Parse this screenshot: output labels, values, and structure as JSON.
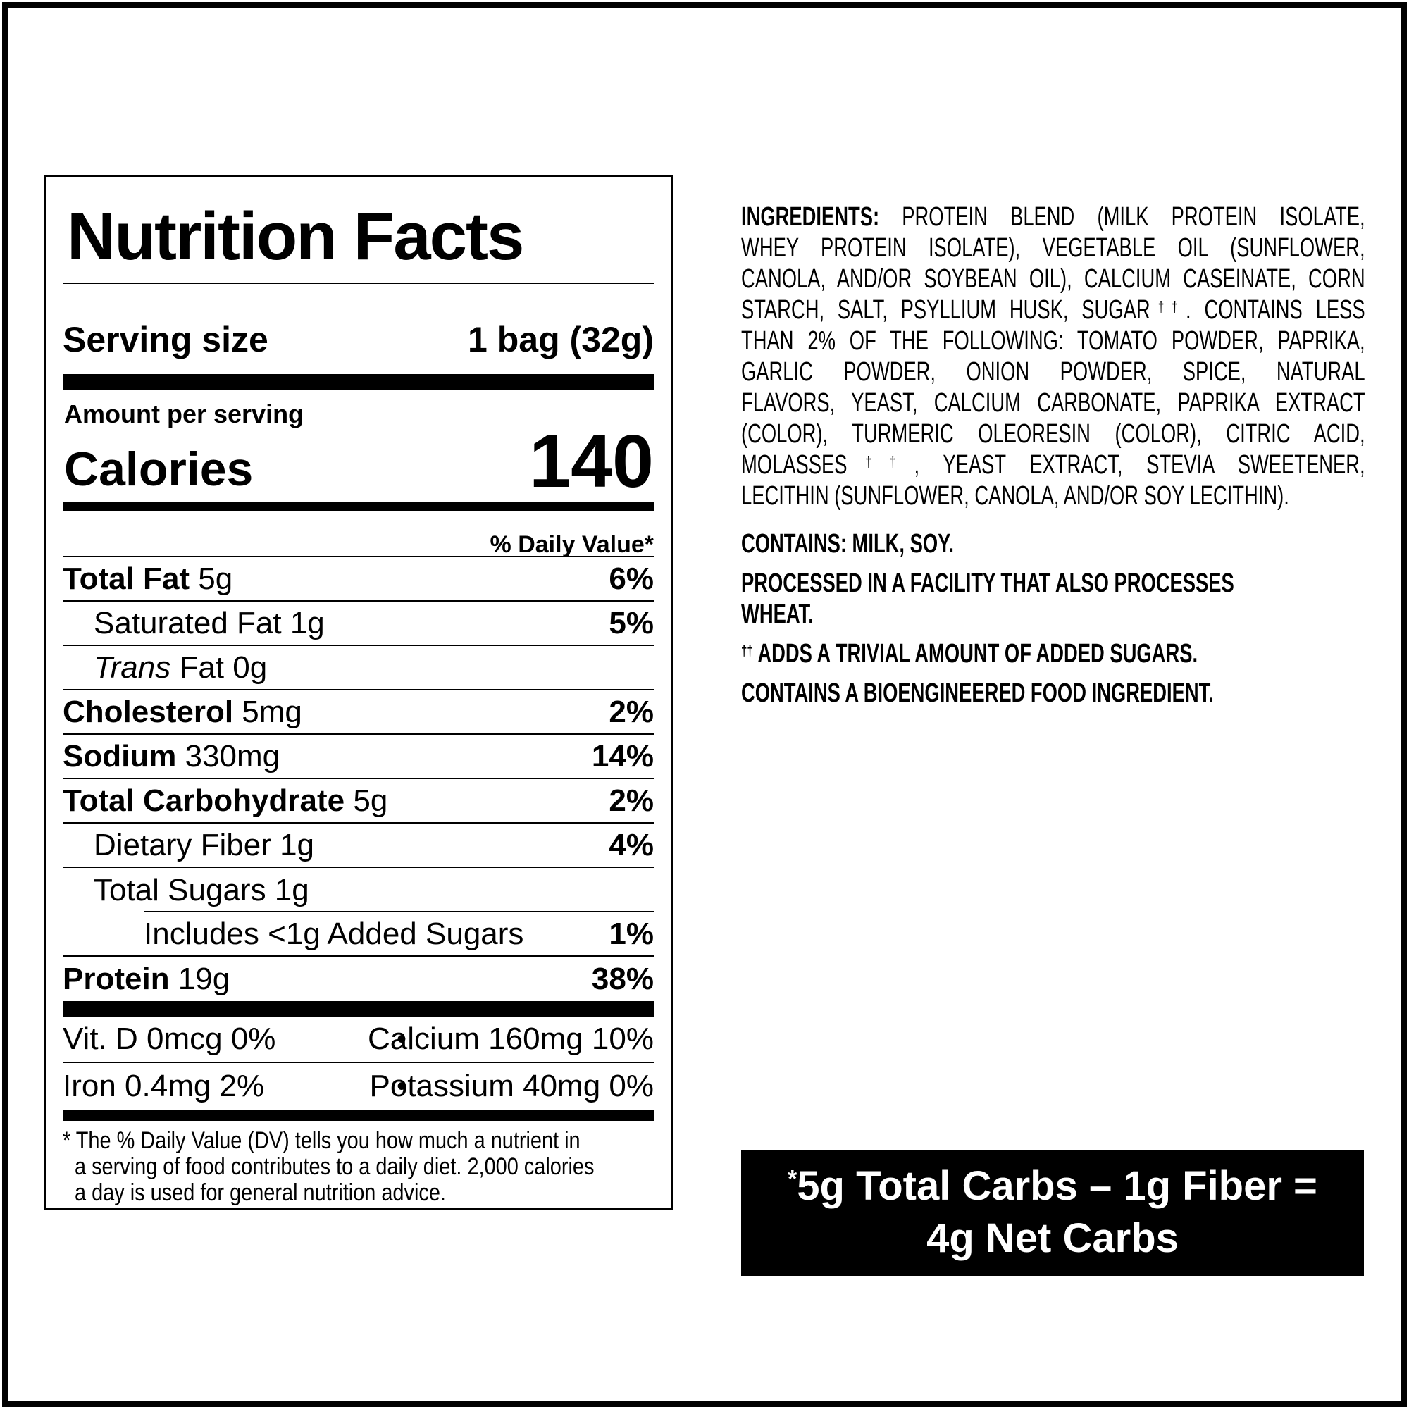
{
  "page": {
    "background": "#ffffff",
    "border_color": "#000000",
    "text_color": "#000000"
  },
  "nutrition_label": {
    "title": "Nutrition Facts",
    "serving_size_label": "Serving size",
    "serving_size_value": "1 bag (32g)",
    "amount_per_serving": "Amount per serving",
    "calories_label": "Calories",
    "calories_value": "140",
    "daily_value_header": "% Daily Value*",
    "rows": [
      {
        "name": "Total Fat",
        "amount": "5g",
        "dv": "6%",
        "bold": true,
        "indent": 0
      },
      {
        "name": "Saturated Fat",
        "amount": "1g",
        "dv": "5%",
        "bold": false,
        "indent": 1
      },
      {
        "italic": "Trans",
        "name": "Fat",
        "amount": "0g",
        "dv": "",
        "bold": false,
        "indent": 1
      },
      {
        "name": "Cholesterol",
        "amount": "5mg",
        "dv": "2%",
        "bold": true,
        "indent": 0
      },
      {
        "name": "Sodium",
        "amount": "330mg",
        "dv": "14%",
        "bold": true,
        "indent": 0
      },
      {
        "name": "Total Carbohydrate",
        "amount": "5g",
        "dv": "2%",
        "bold": true,
        "indent": 0
      },
      {
        "name": "Dietary Fiber",
        "amount": "1g",
        "dv": "4%",
        "bold": false,
        "indent": 1
      },
      {
        "name": "Total Sugars",
        "amount": "1g",
        "dv": "",
        "bold": false,
        "indent": 1,
        "inset_rule_below": true
      },
      {
        "name": "Includes <1g Added Sugars",
        "amount": "",
        "dv": "1%",
        "bold": false,
        "indent": 2
      },
      {
        "name": "Protein",
        "amount": "19g",
        "dv": "38%",
        "bold": true,
        "indent": 0
      }
    ],
    "micronutrients": [
      {
        "left": "Vit. D 0mcg 0%",
        "bullet": "•",
        "right": "Calcium 160mg 10%"
      },
      {
        "left": "Iron 0.4mg 2%",
        "bullet": "•",
        "right": "Potassium 40mg 0%"
      }
    ],
    "footnote": "* The % Daily Value (DV) tells you how much a nutrient in\na serving of food contributes to a daily diet. 2,000 calories\na day is used for general nutrition advice."
  },
  "ingredients": {
    "lines": [
      [
        {
          "t": "INGREDIENTS:",
          "b": true
        },
        {
          "t": " PROTEIN BLEND (MILK PROTEIN ISOLATE,"
        }
      ],
      [
        {
          "t": "WHEY PROTEIN ISOLATE), VEGETABLE OIL (SUNFLOWER,"
        }
      ],
      [
        {
          "t": "CANOLA, AND/OR SOYBEAN OIL), CALCIUM CASEINATE, CORN"
        }
      ],
      [
        {
          "t": "STARCH, SALT, PSYLLIUM HUSK, SUGAR"
        },
        {
          "t": "††",
          "sup": true
        },
        {
          "t": ". CONTAINS LESS"
        }
      ],
      [
        {
          "t": "THAN 2% OF THE FOLLOWING: TOMATO POWDER, PAPRIKA,"
        }
      ],
      [
        {
          "t": "GARLIC POWDER, ONION POWDER, SPICE, NATURAL"
        }
      ],
      [
        {
          "t": "FLAVORS, YEAST, CALCIUM CARBONATE, PAPRIKA EXTRACT"
        }
      ],
      [
        {
          "t": "(COLOR), TURMERIC OLEORESIN (COLOR), CITRIC ACID,"
        }
      ],
      [
        {
          "t": "MOLASSES"
        },
        {
          "t": "††",
          "sup": true
        },
        {
          "t": ", YEAST EXTRACT, STEVIA SWEETENER,"
        }
      ],
      [
        {
          "t": "LECITHIN (SUNFLOWER, CANOLA, AND/OR SOY LECITHIN)."
        }
      ]
    ],
    "contains": "CONTAINS: MILK, SOY.",
    "facility": "PROCESSED IN A FACILITY THAT ALSO PROCESSES\nWHEAT.",
    "added_sugars_sup": "††",
    "added_sugars_note": " ADDS A TRIVIAL AMOUNT OF ADDED SUGARS.",
    "bioengineered": "CONTAINS A BIOENGINEERED FOOD INGREDIENT."
  },
  "net_carbs_box": {
    "asterisk": "*",
    "line1": "5g Total Carbs – 1g Fiber =",
    "line2": "4g Net Carbs",
    "background": "#000000",
    "text_color": "#ffffff"
  }
}
